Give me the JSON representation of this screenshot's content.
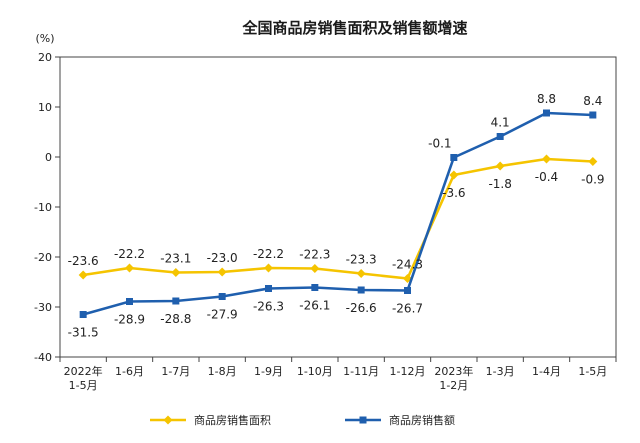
{
  "chart_data": {
    "type": "line",
    "title": "全国商品房销售面积及销售额增速",
    "ylabel": "(%)",
    "ylim": [
      -40,
      20
    ],
    "yticks": [
      "20",
      "10",
      "0",
      "-10",
      "-20",
      "-30",
      "-40"
    ],
    "ytick_values": [
      20,
      10,
      0,
      -10,
      -20,
      -30,
      -40
    ],
    "categories": [
      [
        "2022年",
        "1-5月"
      ],
      [
        "1-6月"
      ],
      [
        "1-7月"
      ],
      [
        "1-8月"
      ],
      [
        "1-9月"
      ],
      [
        "1-10月"
      ],
      [
        "1-11月"
      ],
      [
        "1-12月"
      ],
      [
        "2023年",
        "1-2月"
      ],
      [
        "1-3月"
      ],
      [
        "1-4月"
      ],
      [
        "1-5月"
      ]
    ],
    "series": [
      {
        "name": "商品房销售面积",
        "color": "#f5c400",
        "marker": "diamond",
        "values": [
          -23.6,
          -22.2,
          -23.1,
          -23.0,
          -22.2,
          -22.3,
          -23.3,
          -24.3,
          -3.6,
          -1.8,
          -0.4,
          -0.9
        ],
        "labels": [
          "-23.6",
          "-22.2",
          "-23.1",
          "-23.0",
          "-22.2",
          "-22.3",
          "-23.3",
          "-24.3",
          "-3.6",
          "-1.8",
          "-0.4",
          "-0.9"
        ]
      },
      {
        "name": "商品房销售额",
        "color": "#1f5fae",
        "marker": "square",
        "values": [
          -31.5,
          -28.9,
          -28.8,
          -27.9,
          -26.3,
          -26.1,
          -26.6,
          -26.7,
          -0.1,
          4.1,
          8.8,
          8.4
        ],
        "labels": [
          "-31.5",
          "-28.9",
          "-28.8",
          "-27.9",
          "-26.3",
          "-26.1",
          "-26.6",
          "-26.7",
          "-0.1",
          "4.1",
          "8.8",
          "8.4"
        ]
      }
    ],
    "grid": false,
    "legend_position": "bottom"
  }
}
